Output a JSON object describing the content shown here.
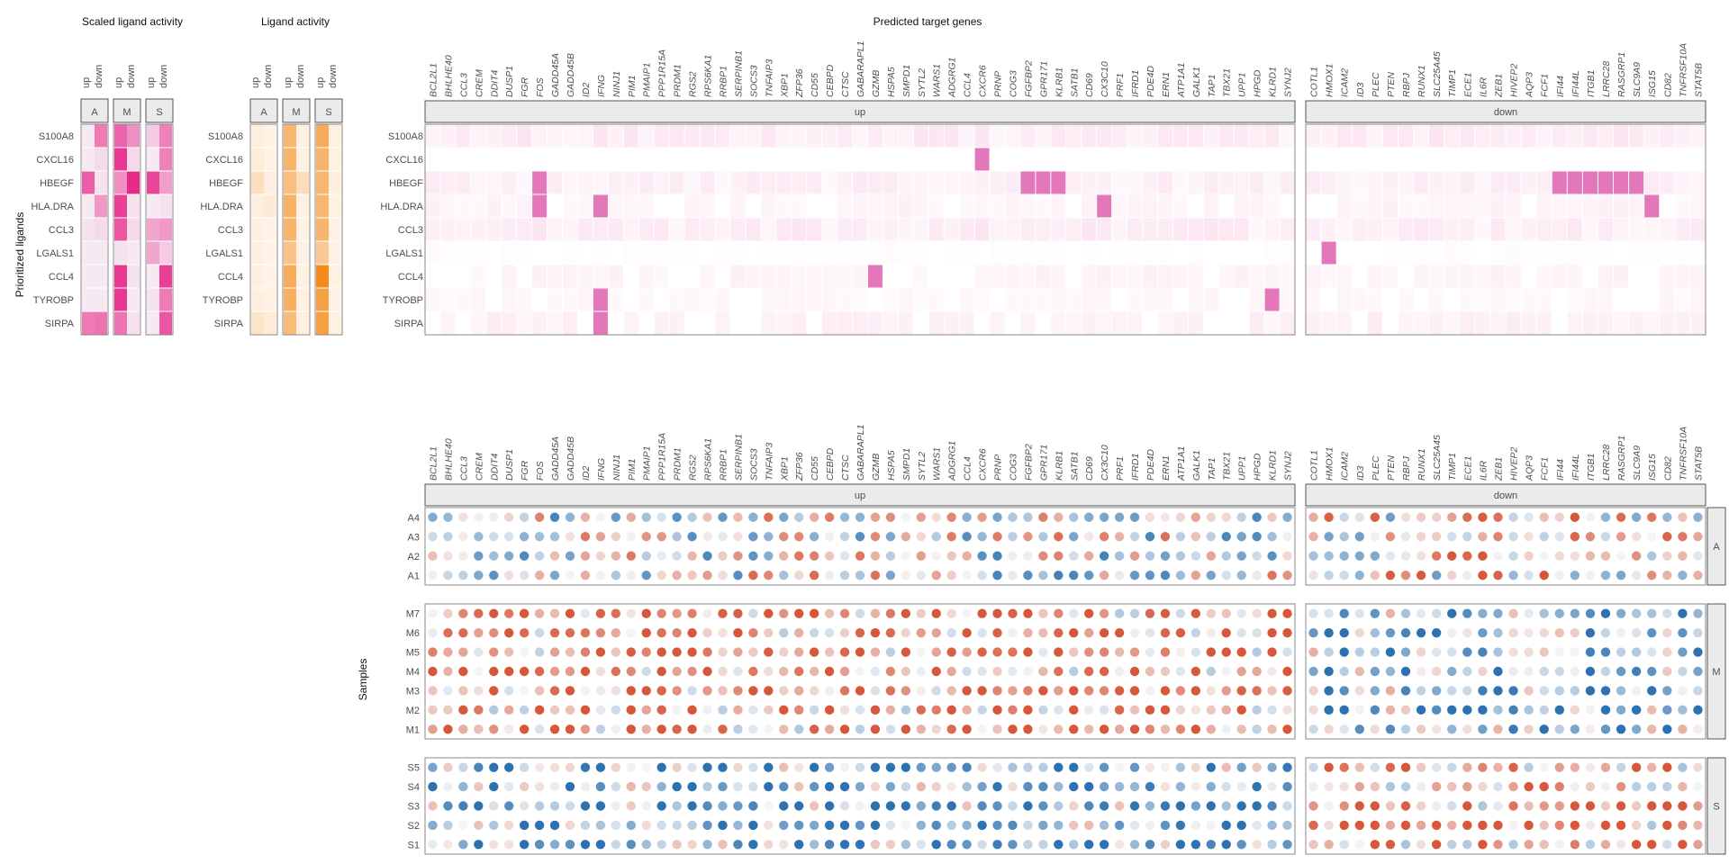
{
  "titles": {
    "scaled": "Scaled ligand activity",
    "activity": "Ligand activity",
    "targets": "Predicted target genes",
    "ylab_ligands": "Prioritized ligands",
    "ylab_samples": "Samples"
  },
  "strips": {
    "up": "up",
    "down": "down",
    "groups": [
      "A",
      "M",
      "S"
    ]
  },
  "colors": {
    "pink_low": "#f7f0f6",
    "pink_high": "#e7298a",
    "orange_low": "#fff5eb",
    "orange_high": "#f2850e",
    "target_low": "#fdf2f7",
    "target_high": "#e377b9",
    "dot_neg": "#2c72b1",
    "dot_mid": "#f5f5f5",
    "dot_pos": "#d6573a"
  },
  "chart_data": [
    {
      "type": "heatmap",
      "title": "Scaled ligand activity",
      "ylabel": "Prioritized ligands",
      "ligands": [
        "S100A8",
        "CXCL16",
        "HBEGF",
        "HLA.DRA",
        "CCL3",
        "LGALS1",
        "CCL4",
        "TYROBP",
        "SIRPA"
      ],
      "groups": [
        "A",
        "M",
        "S"
      ],
      "directions": [
        "up",
        "down"
      ],
      "values": {
        "A": [
          [
            -0.6,
            0.9
          ],
          [
            -0.6,
            -0.4
          ],
          [
            1.3,
            -0.5
          ],
          [
            -0.6,
            0.5
          ],
          [
            -0.5,
            -0.4
          ],
          [
            -0.6,
            -0.6
          ],
          [
            -0.6,
            -0.6
          ],
          [
            -0.6,
            -0.6
          ],
          [
            0.9,
            1.0
          ]
        ],
        "M": [
          [
            1.2,
            0.6
          ],
          [
            1.8,
            -0.4
          ],
          [
            0.6,
            2.0
          ],
          [
            1.7,
            -0.5
          ],
          [
            1.4,
            -0.4
          ],
          [
            -0.5,
            -0.6
          ],
          [
            1.8,
            -0.5
          ],
          [
            1.8,
            -0.6
          ],
          [
            1.0,
            -0.5
          ]
        ],
        "S": [
          [
            -0.2,
            0.8
          ],
          [
            -0.6,
            0.8
          ],
          [
            1.6,
            0.4
          ],
          [
            -0.6,
            -0.5
          ],
          [
            0.3,
            0.5
          ],
          [
            0.3,
            -0.2
          ],
          [
            -0.6,
            1.7
          ],
          [
            -0.5,
            0.9
          ],
          [
            -0.6,
            1.4
          ]
        ]
      }
    },
    {
      "type": "heatmap",
      "title": "Ligand activity",
      "ligands": [
        "S100A8",
        "CXCL16",
        "HBEGF",
        "HLA.DRA",
        "CCL3",
        "LGALS1",
        "CCL4",
        "TYROBP",
        "SIRPA"
      ],
      "groups": [
        "A",
        "M",
        "S"
      ],
      "directions": [
        "up",
        "down"
      ],
      "values": {
        "A": [
          [
            0.06,
            0.02
          ],
          [
            0.08,
            0.03
          ],
          [
            0.2,
            0.05
          ],
          [
            0.06,
            0.1
          ],
          [
            0.05,
            0.02
          ],
          [
            0.05,
            0.02
          ],
          [
            0.05,
            0.02
          ],
          [
            0.05,
            0.03
          ],
          [
            0.14,
            0.08
          ]
        ],
        "M": [
          [
            0.55,
            0.05
          ],
          [
            0.58,
            0.04
          ],
          [
            0.48,
            0.22
          ],
          [
            0.6,
            0.04
          ],
          [
            0.58,
            0.03
          ],
          [
            0.45,
            0.03
          ],
          [
            0.64,
            0.04
          ],
          [
            0.62,
            0.04
          ],
          [
            0.52,
            0.05
          ]
        ],
        "S": [
          [
            0.66,
            0.04
          ],
          [
            0.58,
            0.04
          ],
          [
            0.56,
            0.05
          ],
          [
            0.55,
            0.04
          ],
          [
            0.57,
            0.03
          ],
          [
            0.4,
            0.03
          ],
          [
            0.95,
            0.04
          ],
          [
            0.74,
            0.03
          ],
          [
            0.76,
            0.04
          ]
        ]
      }
    },
    {
      "type": "heatmap",
      "title": "Predicted target genes",
      "ligands": [
        "S100A8",
        "CXCL16",
        "HBEGF",
        "HLA.DRA",
        "CCL3",
        "LGALS1",
        "CCL4",
        "TYROBP",
        "SIRPA"
      ],
      "up_genes": [
        "BCL2L1",
        "BHLHE40",
        "CCL3",
        "CREM",
        "DDIT4",
        "DUSP1",
        "FGR",
        "FOS",
        "GADD45A",
        "GADD45B",
        "ID2",
        "IFNG",
        "NINJ1",
        "PIM1",
        "PMAIP1",
        "PPP1R15A",
        "PRDM1",
        "RGS2",
        "RPS6KA1",
        "RRBP1",
        "SERPINB1",
        "SOCS3",
        "TNFAIP3",
        "XBP1",
        "ZFP36",
        "CD55",
        "CEBPD",
        "CTSC",
        "GABARAPL1",
        "GZMB",
        "HSPA5",
        "SMPD1",
        "SYTL2",
        "WARS1",
        "ADGRG1",
        "CCL4",
        "CXCR6",
        "PRNP",
        "COG3",
        "FGFBP2",
        "GPR171",
        "KLRB1",
        "SATB1",
        "CD69",
        "CX3C10",
        "PRF1",
        "IFRD1",
        "PDE4D",
        "ERN1",
        "ATP1A1",
        "GALK1",
        "TAP1",
        "TBX21",
        "UPP1",
        "HPGD",
        "KLRD1",
        "SYNJ2"
      ],
      "down_genes": [
        "COTL1",
        "HMOX1",
        "ICAM2",
        "ID3",
        "PLEC",
        "PTEN",
        "RBPJ",
        "RUNX1",
        "SLC25A45",
        "TIMP1",
        "ECE1",
        "IL6R",
        "ZEB1",
        "HIVEP2",
        "AQP3",
        "FCF1",
        "IFI44",
        "IFI44L",
        "ITGB1",
        "LRRC28",
        "RASGRP1",
        "SLC9A9",
        "ISG15",
        "CD82",
        "TNFRSF10A",
        "STAT5B"
      ],
      "strong_cells": [
        {
          "ligand": "CXCL16",
          "gene": "CXCR6"
        },
        {
          "ligand": "HBEGF",
          "gene": "FOS"
        },
        {
          "ligand": "HBEGF",
          "gene": "FGFBP2"
        },
        {
          "ligand": "HBEGF",
          "gene": "GPR171"
        },
        {
          "ligand": "HBEGF",
          "gene": "KLRB1"
        },
        {
          "ligand": "HBEGF",
          "gene": "IFI44"
        },
        {
          "ligand": "HBEGF",
          "gene": "IFI44L"
        },
        {
          "ligand": "HBEGF",
          "gene": "ITGB1"
        },
        {
          "ligand": "HBEGF",
          "gene": "LRRC28"
        },
        {
          "ligand": "HBEGF",
          "gene": "RASGRP1"
        },
        {
          "ligand": "HBEGF",
          "gene": "SLC9A9"
        },
        {
          "ligand": "HLA.DRA",
          "gene": "FOS"
        },
        {
          "ligand": "HLA.DRA",
          "gene": "IFNG"
        },
        {
          "ligand": "HLA.DRA",
          "gene": "CX3C10"
        },
        {
          "ligand": "HLA.DRA",
          "gene": "ISG15"
        },
        {
          "ligand": "LGALS1",
          "gene": "HMOX1"
        },
        {
          "ligand": "CCL4",
          "gene": "GZMB"
        },
        {
          "ligand": "TYROBP",
          "gene": "IFNG"
        },
        {
          "ligand": "TYROBP",
          "gene": "KLRD1"
        },
        {
          "ligand": "SIRPA",
          "gene": "IFNG"
        }
      ]
    },
    {
      "type": "scatter",
      "ylabel": "Samples",
      "sample_groups": [
        {
          "group": "A",
          "samples": [
            "A4",
            "A3",
            "A2",
            "A1"
          ]
        },
        {
          "group": "M",
          "samples": [
            "M7",
            "M6",
            "M5",
            "M4",
            "M3",
            "M2",
            "M1"
          ]
        },
        {
          "group": "S",
          "samples": [
            "S5",
            "S4",
            "S3",
            "S2",
            "S1"
          ]
        }
      ],
      "group_trend": {
        "A": 0.0,
        "M": 0.55,
        "S": -0.5
      },
      "down_trend": {
        "A": 0.2,
        "M": -0.45,
        "S": 0.5
      }
    }
  ]
}
